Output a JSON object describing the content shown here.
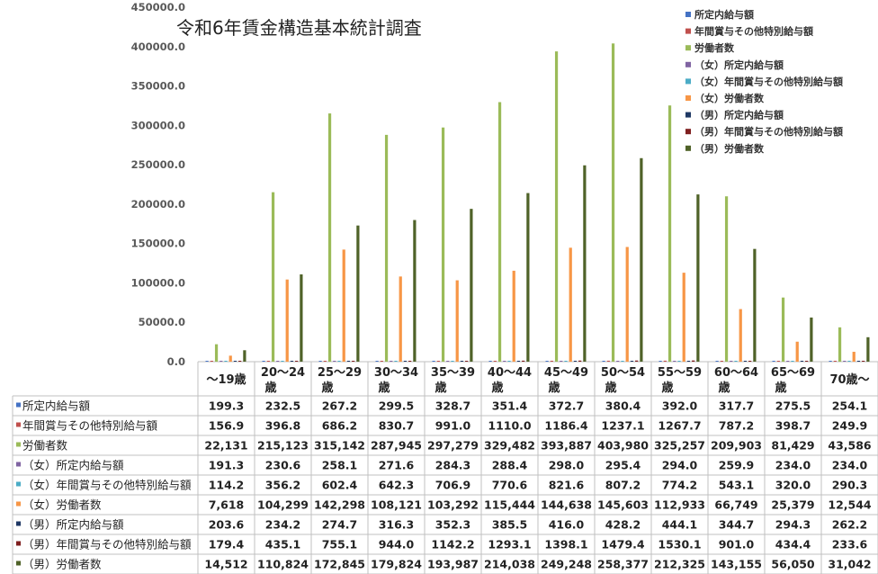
{
  "chart_data": {
    "type": "bar",
    "title": "令和6年賃金構造基本統計調査",
    "xlabel": "",
    "ylabel": "",
    "ylim": [
      0,
      450000
    ],
    "yticks": [
      "0.0",
      "50000.0",
      "100000.0",
      "150000.0",
      "200000.0",
      "250000.0",
      "300000.0",
      "350000.0",
      "400000.0",
      "450000.0"
    ],
    "ytick_values": [
      0,
      50000,
      100000,
      150000,
      200000,
      250000,
      300000,
      350000,
      400000,
      450000
    ],
    "grid": false,
    "legend_position": "top-right",
    "categories": [
      [
        "～19歳"
      ],
      [
        "20～24",
        "歳"
      ],
      [
        "25～29",
        "歳"
      ],
      [
        "30～34",
        "歳"
      ],
      [
        "35～39",
        "歳"
      ],
      [
        "40～44",
        "歳"
      ],
      [
        "45～49",
        "歳"
      ],
      [
        "50～54",
        "歳"
      ],
      [
        "55～59",
        "歳"
      ],
      [
        "60～64",
        "歳"
      ],
      [
        "65～69",
        "歳"
      ],
      [
        "70歳～"
      ]
    ],
    "series": [
      {
        "name": "所定内給与額",
        "color": "#4472c4",
        "values": [
          199.3,
          232.5,
          267.2,
          299.5,
          328.7,
          351.4,
          372.7,
          380.4,
          392.0,
          317.7,
          275.5,
          254.1
        ],
        "display": [
          "199.3",
          "232.5",
          "267.2",
          "299.5",
          "328.7",
          "351.4",
          "372.7",
          "380.4",
          "392.0",
          "317.7",
          "275.5",
          "254.1"
        ]
      },
      {
        "name": "年間賞与その他特別給与額",
        "color": "#c0504d",
        "values": [
          156.9,
          396.8,
          686.2,
          830.7,
          991.0,
          1110.0,
          1186.4,
          1237.1,
          1267.7,
          787.2,
          398.7,
          249.9
        ],
        "display": [
          "156.9",
          "396.8",
          "686.2",
          "830.7",
          "991.0",
          "1110.0",
          "1186.4",
          "1237.1",
          "1267.7",
          "787.2",
          "398.7",
          "249.9"
        ]
      },
      {
        "name": "労働者数",
        "color": "#9bbb59",
        "values": [
          22131,
          215123,
          315142,
          287945,
          297279,
          329482,
          393887,
          403980,
          325257,
          209903,
          81429,
          43586
        ],
        "display": [
          "22,131",
          "215,123",
          "315,142",
          "287,945",
          "297,279",
          "329,482",
          "393,887",
          "403,980",
          "325,257",
          "209,903",
          "81,429",
          "43,586"
        ]
      },
      {
        "name": "（女）所定内給与額",
        "color": "#8064a2",
        "values": [
          191.3,
          230.6,
          258.1,
          271.6,
          284.3,
          288.4,
          298.0,
          295.4,
          294.0,
          259.9,
          234.0,
          234.0
        ],
        "display": [
          "191.3",
          "230.6",
          "258.1",
          "271.6",
          "284.3",
          "288.4",
          "298.0",
          "295.4",
          "294.0",
          "259.9",
          "234.0",
          "234.0"
        ]
      },
      {
        "name": "（女）年間賞与その他特別給与額",
        "color": "#4bacc6",
        "values": [
          114.2,
          356.2,
          602.4,
          642.3,
          706.9,
          770.6,
          821.6,
          807.2,
          774.2,
          543.1,
          320.0,
          290.3
        ],
        "display": [
          "114.2",
          "356.2",
          "602.4",
          "642.3",
          "706.9",
          "770.6",
          "821.6",
          "807.2",
          "774.2",
          "543.1",
          "320.0",
          "290.3"
        ]
      },
      {
        "name": "（女）労働者数",
        "color": "#f79646",
        "values": [
          7618,
          104299,
          142298,
          108121,
          103292,
          115444,
          144638,
          145603,
          112933,
          66749,
          25379,
          12544
        ],
        "display": [
          "7,618",
          "104,299",
          "142,298",
          "108,121",
          "103,292",
          "115,444",
          "144,638",
          "145,603",
          "112,933",
          "66,749",
          "25,379",
          "12,544"
        ]
      },
      {
        "name": "（男）所定内給与額",
        "color": "#1f3864",
        "values": [
          203.6,
          234.2,
          274.7,
          316.3,
          352.3,
          385.5,
          416.0,
          428.2,
          444.1,
          344.7,
          294.3,
          262.2
        ],
        "display": [
          "203.6",
          "234.2",
          "274.7",
          "316.3",
          "352.3",
          "385.5",
          "416.0",
          "428.2",
          "444.1",
          "344.7",
          "294.3",
          "262.2"
        ]
      },
      {
        "name": "（男）年間賞与その他特別給与額",
        "color": "#7f1f1f",
        "values": [
          179.4,
          435.1,
          755.1,
          944.0,
          1142.2,
          1293.1,
          1398.1,
          1479.4,
          1530.1,
          901.0,
          434.4,
          233.6
        ],
        "display": [
          "179.4",
          "435.1",
          "755.1",
          "944.0",
          "1142.2",
          "1293.1",
          "1398.1",
          "1479.4",
          "1530.1",
          "901.0",
          "434.4",
          "233.6"
        ]
      },
      {
        "name": "（男）労働者数",
        "color": "#4f6228",
        "values": [
          14512,
          110824,
          172845,
          179824,
          193987,
          214038,
          249248,
          258377,
          212325,
          143155,
          56050,
          31042
        ],
        "display": [
          "14,512",
          "110,824",
          "172,845",
          "179,824",
          "193,987",
          "214,038",
          "249,248",
          "258,377",
          "212,325",
          "143,155",
          "56,050",
          "31,042"
        ]
      }
    ]
  }
}
